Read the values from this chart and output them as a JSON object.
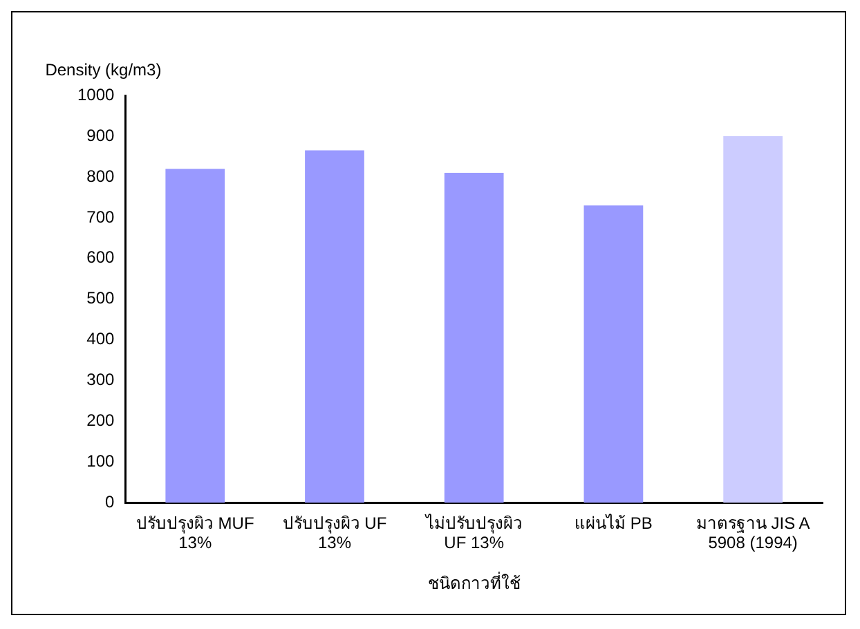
{
  "chart_data": {
    "type": "bar",
    "ylabel": "Density (kg/m3)",
    "xlabel": "ชนิดกาวที่ใช้",
    "categories": [
      "ปรับปรุงผิว MUF 13%",
      "ปรับปรุงผิว UF 13%",
      "ไม่ปรับปรุงผิว UF 13%",
      "แผ่นไม้ PB",
      "มาตรฐาน JIS A 5908 (1994)"
    ],
    "values": [
      820,
      865,
      810,
      730,
      900
    ],
    "colors": [
      "#9999ff",
      "#9999ff",
      "#9999ff",
      "#9999ff",
      "#ccccff"
    ],
    "ylim": [
      0,
      1000
    ],
    "yticks": [
      0,
      100,
      200,
      300,
      400,
      500,
      600,
      700,
      800,
      900,
      1000
    ],
    "grid": false,
    "legend": false
  }
}
